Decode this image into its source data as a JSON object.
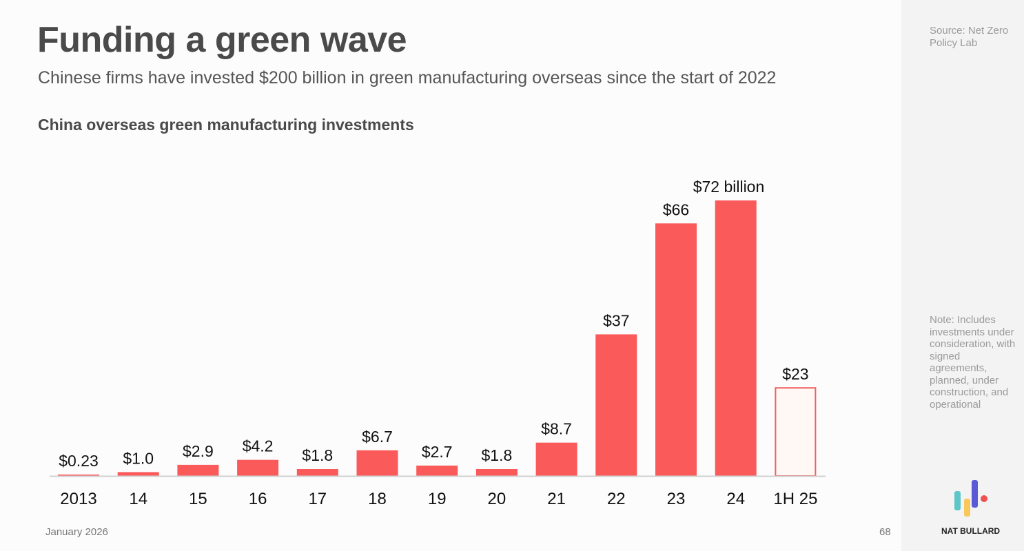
{
  "header": {
    "title": "Funding a green wave",
    "subtitle": "Chinese firms have invested $200 billion in green manufacturing overseas since the start of 2022"
  },
  "sidebar": {
    "source": "Source: Net Zero Policy Lab",
    "note": "Note: Includes investments under consideration, with signed agreements, planned, under construction, and operational",
    "brand": "NAT BULLARD"
  },
  "footer": {
    "date": "January 2026",
    "page": "68"
  },
  "colors": {
    "bar": "#fa5a5a",
    "partial_fill": "#fff8f5",
    "partial_stroke": "#ef6060"
  },
  "chart_data": {
    "type": "bar",
    "title": "China overseas green manufacturing investments",
    "xlabel": "",
    "ylabel": "",
    "ylim": [
      0,
      72
    ],
    "categories": [
      "2013",
      "14",
      "15",
      "16",
      "17",
      "18",
      "19",
      "20",
      "21",
      "22",
      "23",
      "24",
      "1H 25"
    ],
    "values": [
      0.23,
      1.0,
      2.9,
      4.2,
      1.8,
      6.7,
      2.7,
      1.8,
      8.7,
      37,
      66,
      72,
      23
    ],
    "labels": [
      "$0.23",
      "$1.0",
      "$2.9",
      "$4.2",
      "$1.8",
      "$6.7",
      "$2.7",
      "$1.8",
      "$8.7",
      "$37",
      "$66",
      "$72 billion",
      "$23"
    ],
    "partial": [
      false,
      false,
      false,
      false,
      false,
      false,
      false,
      false,
      false,
      false,
      false,
      false,
      true
    ]
  }
}
